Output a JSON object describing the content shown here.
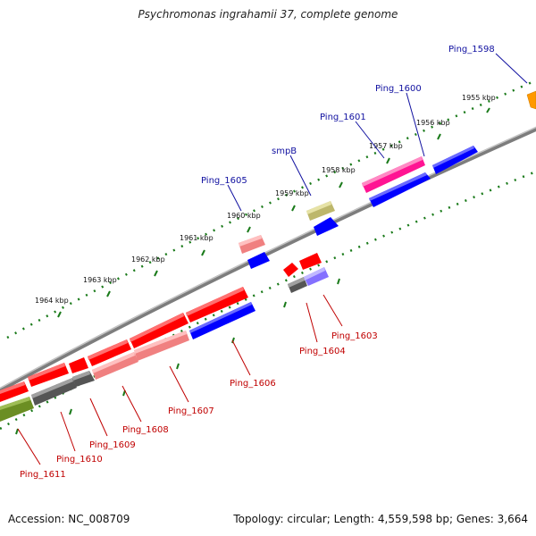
{
  "title": "Psychromonas ingrahamii 37, complete genome",
  "footer": {
    "accession": "Accession: NC_008709",
    "topology": "Topology: circular; Length: 4,559,598 bp; Genes: 3,664"
  },
  "scale_labels": [
    "1955 kbp",
    "1956 kbp",
    "1957 kbp",
    "1958 kbp",
    "1959 kbp",
    "1960 kbp",
    "1961 kbp",
    "1962 kbp",
    "1963 kbp",
    "1964 kbp"
  ],
  "genes_forward": [
    {
      "label": "Ping_1598",
      "color": "#ff9900"
    },
    {
      "label": "Ping_1600",
      "color": "#ff1493"
    },
    {
      "label": "Ping_1601",
      "color": "#ff1493"
    },
    {
      "label": "smpB",
      "color": "#bdb76b"
    },
    {
      "label": "Ping_1605",
      "color": "#f08080"
    }
  ],
  "genes_reverse": [
    {
      "label": "Ping_1603",
      "color": "#8470ff"
    },
    {
      "label": "Ping_1604",
      "color": "#555555"
    },
    {
      "label": "Ping_1606",
      "color": "#ff0000"
    },
    {
      "label": "Ping_1607",
      "color": "#f08080"
    },
    {
      "label": "Ping_1608",
      "color": "#f08080"
    },
    {
      "label": "Ping_1609",
      "color": "#555555"
    },
    {
      "label": "Ping_1610",
      "color": "#555555"
    },
    {
      "label": "Ping_1611",
      "color": "#6b8e23"
    }
  ],
  "colors": {
    "backbone": "#808080",
    "tick": "#1a7a1a",
    "cds_blue": "#0000ff",
    "cds_red": "#ff0000",
    "label_blue": "#1010a0",
    "label_red": "#c00000"
  }
}
